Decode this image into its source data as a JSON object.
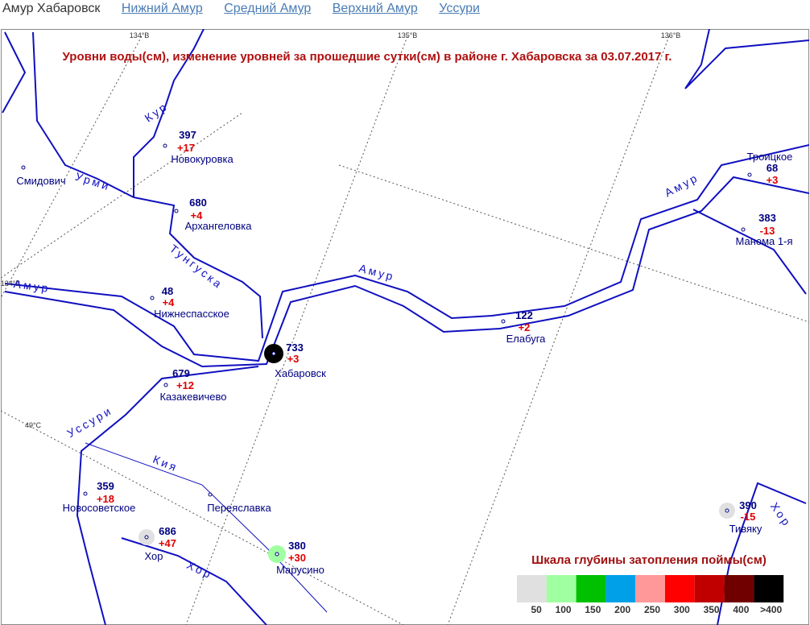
{
  "nav": {
    "current": "Амур Хабаровск",
    "links": [
      "Нижний Амур",
      "Средний Амур",
      "Верхний Амур",
      "Уссури"
    ]
  },
  "map": {
    "title": "Уровни воды(см), изменение уровней за прошедшие сутки(см) в районе г. Хабаровска за 03.07.2017 г.",
    "grid_labels": [
      "134°В",
      "135°В",
      "136°В",
      "134°В",
      "49°С"
    ],
    "rivers": [
      "Кур",
      "Урми",
      "Тунгуска",
      "Амур",
      "Амур",
      "Амур",
      "Уссури",
      "Кия",
      "Хор",
      "Хор"
    ],
    "stations": [
      {
        "name": "Новокуровка",
        "level": 397,
        "change": "+17"
      },
      {
        "name": "Архангеловка",
        "level": 680,
        "change": "+4"
      },
      {
        "name": "Нижнеспасское",
        "level": 48,
        "change": "+4"
      },
      {
        "name": "Хабаровск",
        "level": 733,
        "change": "+3"
      },
      {
        "name": "Казакевичево",
        "level": 679,
        "change": "+12"
      },
      {
        "name": "Елабуга",
        "level": 122,
        "change": "+2"
      },
      {
        "name": "Троицкое",
        "level": 68,
        "change": "+3"
      },
      {
        "name": "Манома 1-я",
        "level": 383,
        "change": "-13"
      },
      {
        "name": "Новосоветское",
        "level": 359,
        "change": "+18"
      },
      {
        "name": "Хор",
        "level": 686,
        "change": "+47"
      },
      {
        "name": "Марусино",
        "level": 380,
        "change": "+30"
      },
      {
        "name": "Тивяку",
        "level": 390,
        "change": "-15"
      },
      {
        "name": "Смидович"
      },
      {
        "name": "Переяславка"
      }
    ],
    "legend": {
      "title": "Шкала глубины затопления поймы(см)",
      "items": [
        {
          "label": "50",
          "color": "#e0e0e0"
        },
        {
          "label": "100",
          "color": "#a0ffa0"
        },
        {
          "label": "150",
          "color": "#00c000"
        },
        {
          "label": "200",
          "color": "#00a0e8"
        },
        {
          "label": "250",
          "color": "#ff9898"
        },
        {
          "label": "300",
          "color": "#ff0000"
        },
        {
          "label": "350",
          "color": "#c00000"
        },
        {
          "label": "400",
          "color": "#700000"
        },
        {
          "label": ">400",
          "color": "#000000"
        }
      ]
    }
  }
}
